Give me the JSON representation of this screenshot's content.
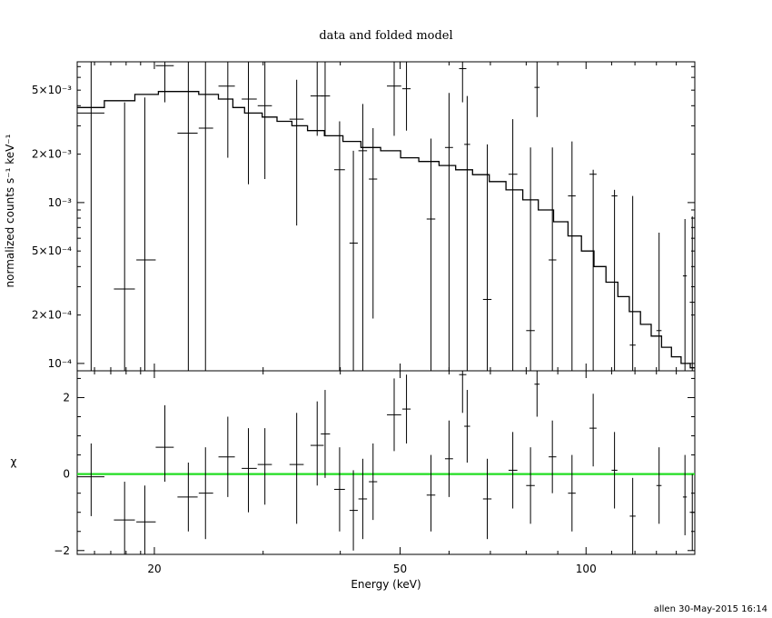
{
  "title": "data and folded model",
  "footer": "allen 30-May-2015 16:14",
  "chart_data": [
    {
      "type": "line",
      "panel": "top",
      "ylabel": "normalized counts s⁻¹ keV⁻¹",
      "xscale": "log",
      "yscale": "log",
      "xlim": [
        15,
        150
      ],
      "ylim": [
        9e-05,
        0.0075
      ],
      "yticks": [
        {
          "value": 0.0001,
          "label": "10⁻⁴"
        },
        {
          "value": 0.0002,
          "label": "2×10⁻⁴"
        },
        {
          "value": 0.0005,
          "label": "5×10⁻⁴"
        },
        {
          "value": 0.001,
          "label": "10⁻³"
        },
        {
          "value": 0.002,
          "label": "2×10⁻³"
        },
        {
          "value": 0.005,
          "label": "5×10⁻³"
        }
      ],
      "data_points": [
        {
          "x": 15.8,
          "xlo": 15.0,
          "xhi": 16.6,
          "y": 0.0036,
          "ylo": 9e-05,
          "yhi": 0.0075
        },
        {
          "x": 17.9,
          "xlo": 17.2,
          "xhi": 18.6,
          "y": 0.00029,
          "ylo": 9e-05,
          "yhi": 0.0042
        },
        {
          "x": 19.3,
          "xlo": 18.7,
          "xhi": 20.1,
          "y": 0.00044,
          "ylo": 9e-05,
          "yhi": 0.0045
        },
        {
          "x": 20.8,
          "xlo": 20.1,
          "xhi": 21.5,
          "y": 0.0071,
          "ylo": 0.0042,
          "yhi": 0.0075
        },
        {
          "x": 22.7,
          "xlo": 21.8,
          "xhi": 23.5,
          "y": 0.0027,
          "ylo": 9e-05,
          "yhi": 0.0075
        },
        {
          "x": 24.2,
          "xlo": 23.6,
          "xhi": 24.9,
          "y": 0.0029,
          "ylo": 9e-05,
          "yhi": 0.0075
        },
        {
          "x": 26.3,
          "xlo": 25.4,
          "xhi": 27.0,
          "y": 0.0053,
          "ylo": 0.0019,
          "yhi": 0.0075
        },
        {
          "x": 28.4,
          "xlo": 27.7,
          "xhi": 29.3,
          "y": 0.0044,
          "ylo": 0.0013,
          "yhi": 0.0075
        },
        {
          "x": 30.2,
          "xlo": 29.4,
          "xhi": 31.0,
          "y": 0.004,
          "ylo": 0.0014,
          "yhi": 0.0075
        },
        {
          "x": 34.0,
          "xlo": 33.1,
          "xhi": 34.9,
          "y": 0.0033,
          "ylo": 0.00072,
          "yhi": 0.0058
        },
        {
          "x": 36.7,
          "xlo": 35.8,
          "xhi": 37.6,
          "y": 0.0046,
          "ylo": 0.0026,
          "yhi": 0.0075
        },
        {
          "x": 37.8,
          "xlo": 37.2,
          "xhi": 38.5,
          "y": 0.0046,
          "ylo": 0.0026,
          "yhi": 0.0075
        },
        {
          "x": 39.9,
          "xlo": 39.1,
          "xhi": 40.7,
          "y": 0.0016,
          "ylo": 9e-05,
          "yhi": 0.0032
        },
        {
          "x": 42.0,
          "xlo": 41.4,
          "xhi": 42.7,
          "y": 0.00056,
          "ylo": 9e-05,
          "yhi": 0.0021
        },
        {
          "x": 43.5,
          "xlo": 42.8,
          "xhi": 44.2,
          "y": 0.0021,
          "ylo": 9e-05,
          "yhi": 0.0041
        },
        {
          "x": 45.2,
          "xlo": 44.5,
          "xhi": 45.9,
          "y": 0.0014,
          "ylo": 0.00019,
          "yhi": 0.0029
        },
        {
          "x": 48.9,
          "xlo": 47.6,
          "xhi": 50.2,
          "y": 0.0053,
          "ylo": 0.0026,
          "yhi": 0.0075
        },
        {
          "x": 51.2,
          "xlo": 50.4,
          "xhi": 52.0,
          "y": 0.0051,
          "ylo": 0.0028,
          "yhi": 0.0075
        },
        {
          "x": 56.1,
          "xlo": 55.2,
          "xhi": 57.0,
          "y": 0.00079,
          "ylo": 9e-05,
          "yhi": 0.0025
        },
        {
          "x": 60.0,
          "xlo": 59.1,
          "xhi": 60.9,
          "y": 0.0022,
          "ylo": 9e-05,
          "yhi": 0.0048
        },
        {
          "x": 63.1,
          "xlo": 62.3,
          "xhi": 64.0,
          "y": 0.0068,
          "ylo": 0.0042,
          "yhi": 0.0075
        },
        {
          "x": 64.2,
          "xlo": 63.5,
          "xhi": 64.9,
          "y": 0.0023,
          "ylo": 9e-05,
          "yhi": 0.0046
        },
        {
          "x": 69.2,
          "xlo": 68.1,
          "xhi": 70.3,
          "y": 0.00025,
          "ylo": 9e-05,
          "yhi": 0.0023
        },
        {
          "x": 76.1,
          "xlo": 74.9,
          "xhi": 77.4,
          "y": 0.0015,
          "ylo": 9e-05,
          "yhi": 0.0033
        },
        {
          "x": 81.3,
          "xlo": 80.0,
          "xhi": 82.6,
          "y": 0.00016,
          "ylo": 9e-05,
          "yhi": 0.0022
        },
        {
          "x": 83.3,
          "xlo": 82.5,
          "xhi": 84.1,
          "y": 0.0052,
          "ylo": 0.0034,
          "yhi": 0.0075
        },
        {
          "x": 88.2,
          "xlo": 87.0,
          "xhi": 89.5,
          "y": 0.00044,
          "ylo": 9e-05,
          "yhi": 0.0022
        },
        {
          "x": 94.9,
          "xlo": 93.5,
          "xhi": 96.2,
          "y": 0.0011,
          "ylo": 9e-05,
          "yhi": 0.0024
        },
        {
          "x": 102.7,
          "xlo": 101.3,
          "xhi": 104.0,
          "y": 0.0015,
          "ylo": 9e-05,
          "yhi": 0.0016
        },
        {
          "x": 111.2,
          "xlo": 110.0,
          "xhi": 112.4,
          "y": 0.0011,
          "ylo": 9e-05,
          "yhi": 0.0012
        },
        {
          "x": 119.0,
          "xlo": 117.7,
          "xhi": 120.3,
          "y": 0.00013,
          "ylo": 9e-05,
          "yhi": 0.0011
        },
        {
          "x": 131.3,
          "xlo": 130.0,
          "xhi": 132.5,
          "y": 0.00016,
          "ylo": 9e-05,
          "yhi": 0.00065
        },
        {
          "x": 144.6,
          "xlo": 143.5,
          "xhi": 145.6,
          "y": 0.00035,
          "ylo": 9e-05,
          "yhi": 0.00079
        },
        {
          "x": 148.6,
          "xlo": 147.2,
          "xhi": 150.0,
          "y": 0.00024,
          "ylo": 9e-05,
          "yhi": 0.00082
        }
      ],
      "model": [
        {
          "x": 15.0,
          "y": 0.0039
        },
        {
          "x": 16.6,
          "y": 0.0043
        },
        {
          "x": 18.6,
          "y": 0.0047
        },
        {
          "x": 20.3,
          "y": 0.0049
        },
        {
          "x": 23.6,
          "y": 0.0047
        },
        {
          "x": 25.4,
          "y": 0.0044
        },
        {
          "x": 26.8,
          "y": 0.0039
        },
        {
          "x": 28.0,
          "y": 0.0036
        },
        {
          "x": 29.9,
          "y": 0.0034
        },
        {
          "x": 31.6,
          "y": 0.0032
        },
        {
          "x": 33.4,
          "y": 0.003
        },
        {
          "x": 35.4,
          "y": 0.0028
        },
        {
          "x": 37.7,
          "y": 0.0026
        },
        {
          "x": 40.4,
          "y": 0.0024
        },
        {
          "x": 43.2,
          "y": 0.0022
        },
        {
          "x": 46.5,
          "y": 0.0021
        },
        {
          "x": 50.1,
          "y": 0.0019
        },
        {
          "x": 53.6,
          "y": 0.0018
        },
        {
          "x": 57.8,
          "y": 0.0017
        },
        {
          "x": 61.5,
          "y": 0.0016
        },
        {
          "x": 65.5,
          "y": 0.00149
        },
        {
          "x": 69.7,
          "y": 0.00135
        },
        {
          "x": 74.2,
          "y": 0.0012
        },
        {
          "x": 79.0,
          "y": 0.00104
        },
        {
          "x": 83.7,
          "y": 0.0009
        },
        {
          "x": 88.6,
          "y": 0.00076
        },
        {
          "x": 93.5,
          "y": 0.00062
        },
        {
          "x": 98.3,
          "y": 0.0005
        },
        {
          "x": 103.0,
          "y": 0.0004
        },
        {
          "x": 107.7,
          "y": 0.00032
        },
        {
          "x": 112.6,
          "y": 0.00026
        },
        {
          "x": 117.5,
          "y": 0.00021
        },
        {
          "x": 122.5,
          "y": 0.000175
        },
        {
          "x": 127.5,
          "y": 0.000148
        },
        {
          "x": 132.5,
          "y": 0.000126
        },
        {
          "x": 137.5,
          "y": 0.00011
        },
        {
          "x": 142.5,
          "y": 0.0001
        },
        {
          "x": 147.5,
          "y": 9.4e-05
        },
        {
          "x": 150.0,
          "y": 9.3e-05
        }
      ]
    },
    {
      "type": "scatter",
      "panel": "bottom",
      "xlabel": "Energy (keV)",
      "ylabel": "χ",
      "xscale": "log",
      "xlim": [
        15,
        150
      ],
      "ylim": [
        -2.1,
        2.7
      ],
      "xticks": [
        {
          "value": 20,
          "label": "20"
        },
        {
          "value": 50,
          "label": "50"
        },
        {
          "value": 100,
          "label": "100"
        }
      ],
      "yticks": [
        {
          "value": -2,
          "label": "−2"
        },
        {
          "value": 0,
          "label": "0"
        },
        {
          "value": 2,
          "label": "2"
        }
      ],
      "zero_line_color": "#22dd22",
      "residuals": [
        {
          "x": 15.8,
          "xlo": 15.0,
          "xhi": 16.6,
          "y": -0.07,
          "ylo": -1.1,
          "yhi": 0.8
        },
        {
          "x": 17.9,
          "xlo": 17.2,
          "xhi": 18.6,
          "y": -1.2,
          "ylo": -2.1,
          "yhi": -0.2
        },
        {
          "x": 19.3,
          "xlo": 18.7,
          "xhi": 20.1,
          "y": -1.25,
          "ylo": -2.1,
          "yhi": -0.3
        },
        {
          "x": 20.8,
          "xlo": 20.1,
          "xhi": 21.5,
          "y": 0.7,
          "ylo": -0.2,
          "yhi": 1.8
        },
        {
          "x": 22.7,
          "xlo": 21.8,
          "xhi": 23.5,
          "y": -0.6,
          "ylo": -1.5,
          "yhi": 0.3
        },
        {
          "x": 24.2,
          "xlo": 23.6,
          "xhi": 24.9,
          "y": -0.5,
          "ylo": -1.7,
          "yhi": 0.7
        },
        {
          "x": 26.3,
          "xlo": 25.4,
          "xhi": 27.0,
          "y": 0.45,
          "ylo": -0.6,
          "yhi": 1.5
        },
        {
          "x": 28.4,
          "xlo": 27.7,
          "xhi": 29.3,
          "y": 0.15,
          "ylo": -1.0,
          "yhi": 1.2
        },
        {
          "x": 30.2,
          "xlo": 29.4,
          "xhi": 31.0,
          "y": 0.25,
          "ylo": -0.8,
          "yhi": 1.2
        },
        {
          "x": 34.0,
          "xlo": 33.1,
          "xhi": 34.9,
          "y": 0.25,
          "ylo": -1.3,
          "yhi": 1.6
        },
        {
          "x": 36.7,
          "xlo": 35.8,
          "xhi": 37.6,
          "y": 0.75,
          "ylo": -0.3,
          "yhi": 1.9
        },
        {
          "x": 37.8,
          "xlo": 37.2,
          "xhi": 38.5,
          "y": 1.05,
          "ylo": -0.1,
          "yhi": 2.2
        },
        {
          "x": 39.9,
          "xlo": 39.1,
          "xhi": 40.7,
          "y": -0.4,
          "ylo": -1.5,
          "yhi": 0.7
        },
        {
          "x": 42.0,
          "xlo": 41.4,
          "xhi": 42.7,
          "y": -0.95,
          "ylo": -2.0,
          "yhi": 0.1
        },
        {
          "x": 43.5,
          "xlo": 42.8,
          "xhi": 44.2,
          "y": -0.65,
          "ylo": -1.7,
          "yhi": 0.4
        },
        {
          "x": 45.2,
          "xlo": 44.5,
          "xhi": 45.9,
          "y": -0.2,
          "ylo": -1.2,
          "yhi": 0.8
        },
        {
          "x": 48.9,
          "xlo": 47.6,
          "xhi": 50.2,
          "y": 1.55,
          "ylo": 0.6,
          "yhi": 2.5
        },
        {
          "x": 51.2,
          "xlo": 50.4,
          "xhi": 52.0,
          "y": 1.7,
          "ylo": 0.8,
          "yhi": 2.6
        },
        {
          "x": 56.1,
          "xlo": 55.2,
          "xhi": 57.0,
          "y": -0.55,
          "ylo": -1.5,
          "yhi": 0.5
        },
        {
          "x": 60.0,
          "xlo": 59.1,
          "xhi": 60.9,
          "y": 0.4,
          "ylo": -0.6,
          "yhi": 1.4
        },
        {
          "x": 63.1,
          "xlo": 62.3,
          "xhi": 64.0,
          "y": 2.6,
          "ylo": 1.6,
          "yhi": 2.7
        },
        {
          "x": 64.2,
          "xlo": 63.5,
          "xhi": 64.9,
          "y": 1.25,
          "ylo": 0.3,
          "yhi": 2.2
        },
        {
          "x": 69.2,
          "xlo": 68.1,
          "xhi": 70.3,
          "y": -0.65,
          "ylo": -1.7,
          "yhi": 0.4
        },
        {
          "x": 76.1,
          "xlo": 74.9,
          "xhi": 77.4,
          "y": 0.1,
          "ylo": -0.9,
          "yhi": 1.1
        },
        {
          "x": 81.3,
          "xlo": 80.0,
          "xhi": 82.6,
          "y": -0.3,
          "ylo": -1.3,
          "yhi": 0.7
        },
        {
          "x": 83.3,
          "xlo": 82.5,
          "xhi": 84.1,
          "y": 2.35,
          "ylo": 1.5,
          "yhi": 2.7
        },
        {
          "x": 88.2,
          "xlo": 87.0,
          "xhi": 89.5,
          "y": 0.45,
          "ylo": -0.5,
          "yhi": 1.4
        },
        {
          "x": 94.9,
          "xlo": 93.5,
          "xhi": 96.2,
          "y": -0.5,
          "ylo": -1.5,
          "yhi": 0.5
        },
        {
          "x": 102.7,
          "xlo": 101.3,
          "xhi": 104.0,
          "y": 1.2,
          "ylo": 0.2,
          "yhi": 2.1
        },
        {
          "x": 111.2,
          "xlo": 110.0,
          "xhi": 112.4,
          "y": 0.1,
          "ylo": -0.9,
          "yhi": 1.1
        },
        {
          "x": 119.0,
          "xlo": 117.7,
          "xhi": 120.3,
          "y": -1.1,
          "ylo": -2.1,
          "yhi": -0.1
        },
        {
          "x": 131.3,
          "xlo": 130.0,
          "xhi": 132.5,
          "y": -0.3,
          "ylo": -1.3,
          "yhi": 0.7
        },
        {
          "x": 144.6,
          "xlo": 143.5,
          "xhi": 145.6,
          "y": -0.6,
          "ylo": -1.6,
          "yhi": 0.5
        },
        {
          "x": 148.6,
          "xlo": 147.2,
          "xhi": 150.0,
          "y": -1.0,
          "ylo": -2.0,
          "yhi": 0.0
        }
      ]
    }
  ]
}
